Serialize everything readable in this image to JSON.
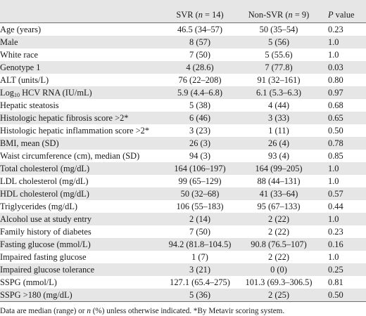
{
  "header": {
    "col_variable": "",
    "col_svr_prefix": "SVR (",
    "col_svr_n": "n",
    "col_svr_suffix": " = 14)",
    "col_non_prefix": "Non-SVR (",
    "col_non_n": "n",
    "col_non_suffix": " = 9)",
    "col_p_italic": "P",
    "col_p_suffix": " value"
  },
  "rows": [
    {
      "variable": "Age (years)",
      "svr": "46.5 (34–57)",
      "non_svr": "50 (35–54)",
      "p": "0.23"
    },
    {
      "variable": "Male",
      "svr": "8 (57)",
      "non_svr": "5 (56)",
      "p": "1.0"
    },
    {
      "variable": "White race",
      "svr": "7 (50)",
      "non_svr": "5 (55.6)",
      "p": "1.0"
    },
    {
      "variable": "Genotype 1",
      "svr": "4 (28.6)",
      "non_svr": "7 (77.8)",
      "p": "0.03"
    },
    {
      "variable": "ALT (units/L)",
      "svr": "76 (22–208)",
      "non_svr": "91 (32–161)",
      "p": "0.80"
    },
    {
      "variable_prefix": "Log",
      "variable_sub": "10",
      "variable_suffix": " HCV RNA (IU/mL)",
      "svr": "5.9 (4.4–6.8)",
      "non_svr": "6.1 (5.3–6.3)",
      "p": "0.97"
    },
    {
      "variable": "Hepatic steatosis",
      "svr": "5 (38)",
      "non_svr": "4 (44)",
      "p": "0.68"
    },
    {
      "variable": "Histologic hepatic fibrosis score >2*",
      "svr": "6 (46)",
      "non_svr": "3 (33)",
      "p": "0.65"
    },
    {
      "variable": "Histologic hepatic inflammation score >2*",
      "svr": "3 (23)",
      "non_svr": "1 (11)",
      "p": "0.50"
    },
    {
      "variable": "BMI, mean (SD)",
      "svr": "26 (3)",
      "non_svr": "26 (4)",
      "p": "0.78"
    },
    {
      "variable": "Waist circumference (cm), median (SD)",
      "svr": "94 (3)",
      "non_svr": "93 (4)",
      "p": "0.85"
    },
    {
      "variable": "Total cholesterol (mg/dL)",
      "svr": "164 (106–197)",
      "non_svr": "164 (99–205)",
      "p": "1.0"
    },
    {
      "variable": "LDL cholesterol (mg/dL)",
      "svr": "99 (65–129)",
      "non_svr": "88 (44–131)",
      "p": "1.0"
    },
    {
      "variable": "HDL cholesterol (mg/dL)",
      "svr": "50 (32–68)",
      "non_svr": "41 (33–64)",
      "p": "0.57"
    },
    {
      "variable": "Triglycerides (mg/dL)",
      "svr": "106 (55–183)",
      "non_svr": "95 (67–133)",
      "p": "0.44"
    },
    {
      "variable": "Alcohol use at study entry",
      "svr": "2 (14)",
      "non_svr": "2 (22)",
      "p": "1.0"
    },
    {
      "variable": "Family history of diabetes",
      "svr": "7 (50)",
      "non_svr": "2 (22)",
      "p": "0.23"
    },
    {
      "variable": "Fasting glucose (mmol/L)",
      "svr": "94.2 (81.8–104.5)",
      "non_svr": "90.8 (76.5–107)",
      "p": "0.16"
    },
    {
      "variable": "Impaired fasting glucose",
      "svr": "1 (7)",
      "non_svr": "2 (22)",
      "p": "1.0"
    },
    {
      "variable": "Impaired glucose tolerance",
      "svr": "3 (21)",
      "non_svr": "0 (0)",
      "p": "0.25"
    },
    {
      "variable": "SSPG (mmol/L)",
      "svr": "127.1 (65.4–275)",
      "non_svr": "101.3 (69.3–306.5)",
      "p": "0.81"
    },
    {
      "variable": "SSPG >180 (mg/dL)",
      "svr": "5 (36)",
      "non_svr": "2 (25)",
      "p": "0.50"
    }
  ],
  "footnote": {
    "part1": "Data are median (range) or ",
    "n_italic": "n",
    "part2": " (%) unless otherwise indicated. *By Metavir scoring system."
  }
}
